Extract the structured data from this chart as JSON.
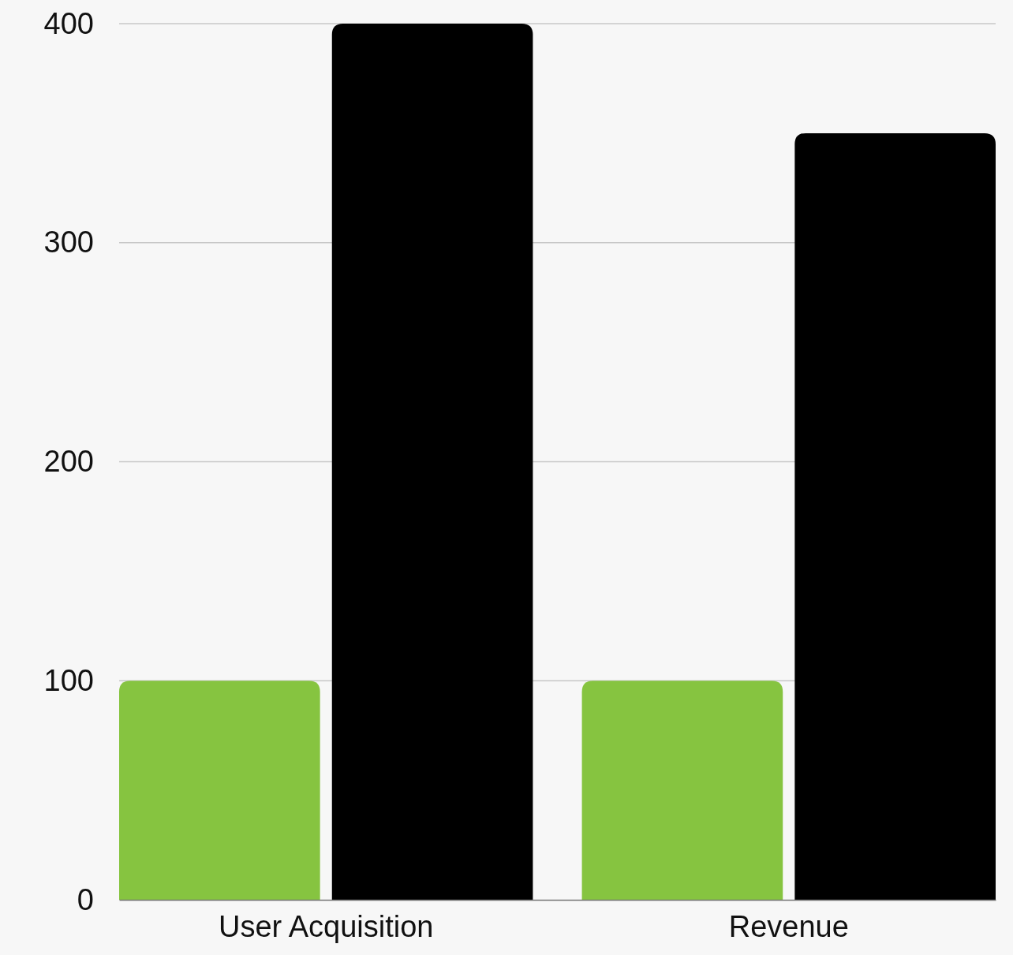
{
  "chart_data": {
    "type": "bar",
    "categories": [
      "User Acquisition",
      "Revenue"
    ],
    "series": [
      {
        "color": "#86c440",
        "values": [
          100,
          100
        ]
      },
      {
        "color": "#000000",
        "values": [
          400,
          350
        ]
      }
    ],
    "ylim": [
      0,
      400
    ],
    "yticks": [
      0,
      100,
      200,
      300,
      400
    ],
    "grid": "y"
  }
}
